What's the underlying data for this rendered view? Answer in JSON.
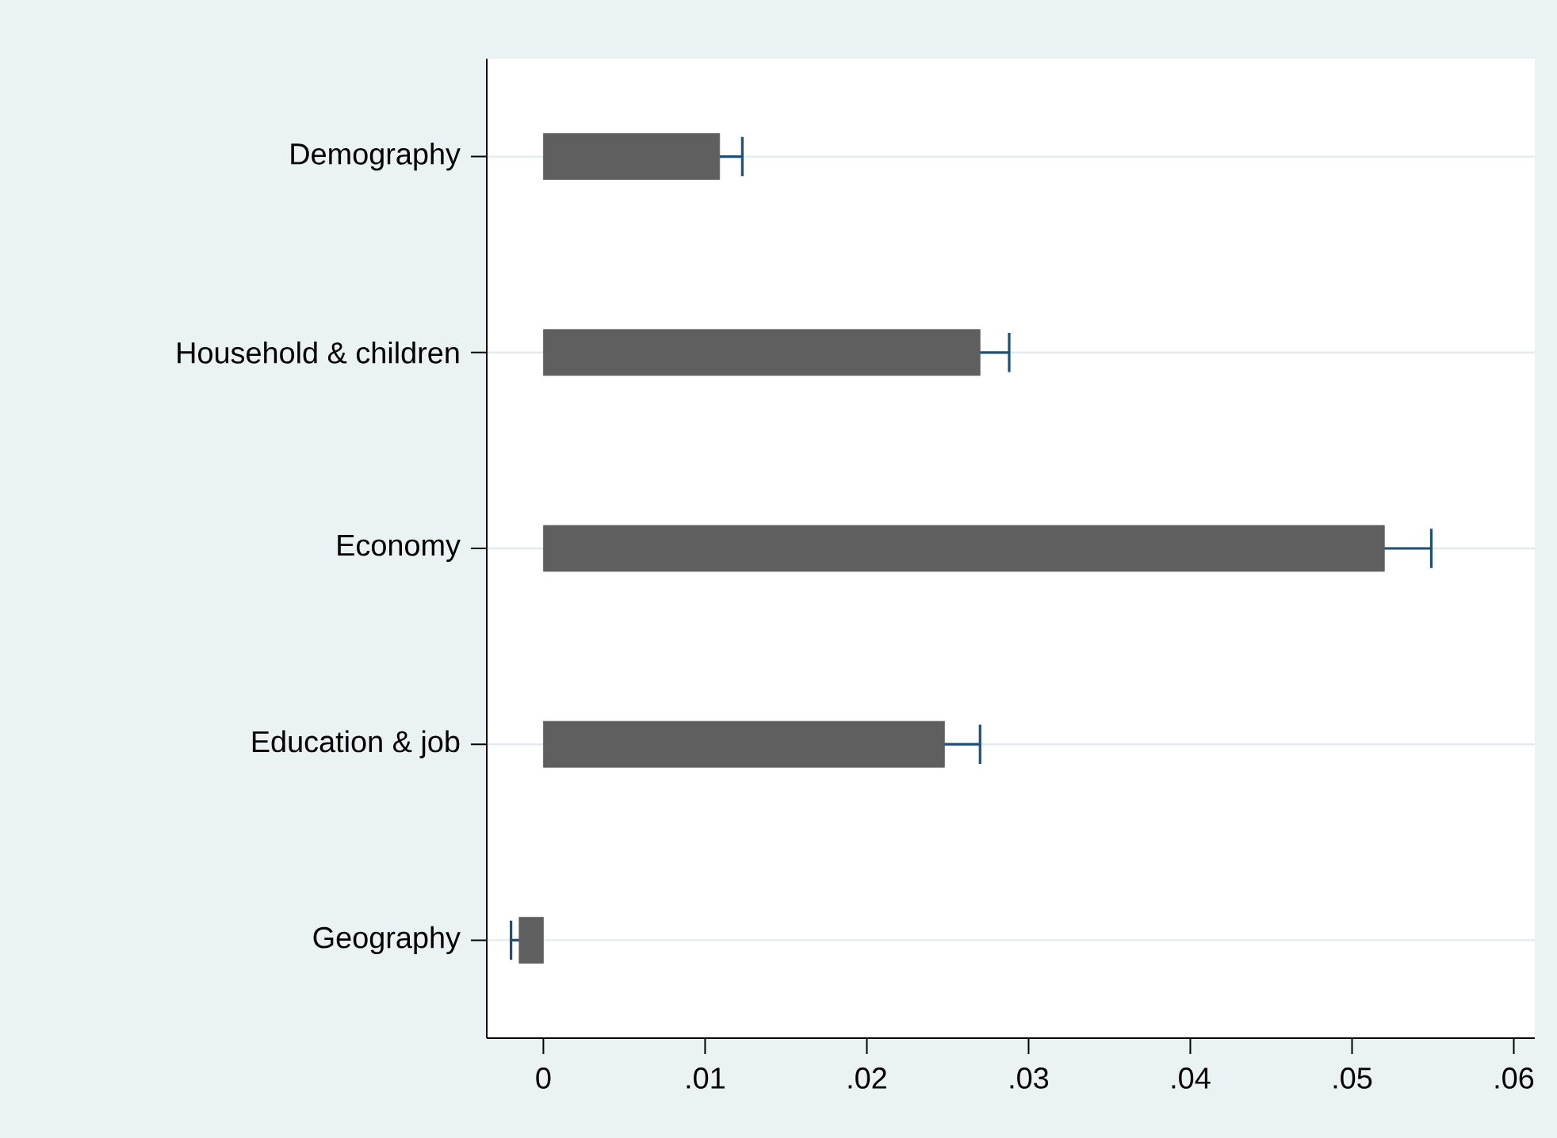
{
  "chart_data": {
    "type": "bar",
    "orientation": "horizontal",
    "categories": [
      "Demography",
      "Household & children",
      "Economy",
      "Education & job",
      "Geography"
    ],
    "values": [
      0.0109,
      0.027,
      0.052,
      0.0248,
      -0.0015
    ],
    "errors": [
      [
        0.0109,
        0.0123
      ],
      [
        0.027,
        0.0288
      ],
      [
        0.052,
        0.0549
      ],
      [
        0.0248,
        0.027
      ],
      [
        -0.002,
        -0.0015
      ]
    ],
    "color": "#5f5f5f",
    "xlim": [
      -0.0035,
      0.0613
    ],
    "xticks": [
      0,
      {
        "value": 0.01,
        "label": ".01"
      },
      {
        "value": 0.02,
        "label": ".02"
      },
      {
        "value": 0.03,
        "label": ".03"
      },
      {
        "value": 0.04,
        "label": ".04"
      },
      {
        "value": 0.05,
        "label": ".05"
      },
      {
        "value": 0.06,
        "label": ".06"
      }
    ],
    "grid": "y"
  }
}
